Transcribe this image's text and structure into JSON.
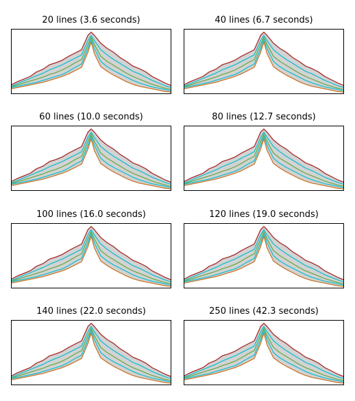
{
  "chart_data": {
    "type": "area",
    "layout": "4x2 grid of small panels",
    "xlim": [
      0,
      100
    ],
    "ylim": [
      0,
      100
    ],
    "grid": false,
    "axis_ticks": false,
    "colors": {
      "upper_boundary": "#a52a2a",
      "lower_boundary": "#c8752a",
      "band_fill": "#d3d3d3",
      "inner_lines": "#17becf",
      "median_line": "#6aaa4a"
    },
    "x": [
      0,
      4,
      8,
      12,
      16,
      20,
      24,
      28,
      32,
      36,
      40,
      44,
      48,
      50,
      52,
      56,
      60,
      64,
      68,
      72,
      76,
      80,
      84,
      88,
      92,
      96,
      100
    ],
    "series": [
      {
        "role": "upper",
        "values": [
          14,
          19,
          23,
          27,
          34,
          38,
          45,
          48,
          52,
          58,
          63,
          68,
          90,
          95,
          90,
          78,
          70,
          64,
          56,
          50,
          43,
          39,
          34,
          27,
          22,
          17,
          13
        ]
      },
      {
        "role": "inner-high",
        "values": [
          12,
          16,
          20,
          24,
          28,
          32,
          37,
          41,
          45,
          50,
          55,
          60,
          82,
          90,
          82,
          68,
          60,
          53,
          47,
          41,
          35,
          31,
          26,
          21,
          17,
          13,
          10
        ]
      },
      {
        "role": "median",
        "values": [
          11,
          14,
          17,
          20,
          23,
          26,
          30,
          33,
          37,
          42,
          48,
          53,
          76,
          87,
          76,
          58,
          50,
          44,
          38,
          32,
          27,
          23,
          19,
          15,
          12,
          9,
          7
        ]
      },
      {
        "role": "inner-low",
        "values": [
          10,
          12,
          14,
          16,
          18,
          21,
          24,
          27,
          30,
          35,
          41,
          46,
          70,
          84,
          70,
          50,
          42,
          36,
          31,
          26,
          21,
          17,
          14,
          11,
          9,
          7,
          5
        ]
      },
      {
        "role": "lower",
        "values": [
          8,
          10,
          12,
          14,
          16,
          18,
          21,
          24,
          27,
          31,
          36,
          41,
          64,
          80,
          62,
          42,
          35,
          29,
          24,
          19,
          15,
          12,
          10,
          8,
          6,
          4,
          3
        ]
      }
    ],
    "panels": [
      {
        "title": "20 lines (3.6 seconds)",
        "lines": 20,
        "seconds": 3.6
      },
      {
        "title": "40 lines (6.7 seconds)",
        "lines": 40,
        "seconds": 6.7
      },
      {
        "title": "60 lines (10.0 seconds)",
        "lines": 60,
        "seconds": 10.0
      },
      {
        "title": "80 lines (12.7 seconds)",
        "lines": 80,
        "seconds": 12.7
      },
      {
        "title": "100 lines (16.0 seconds)",
        "lines": 100,
        "seconds": 16.0
      },
      {
        "title": "120 lines (19.0 seconds)",
        "lines": 120,
        "seconds": 19.0
      },
      {
        "title": "140 lines (22.0 seconds)",
        "lines": 140,
        "seconds": 22.0
      },
      {
        "title": "250 lines (42.3 seconds)",
        "lines": 250,
        "seconds": 42.3
      }
    ]
  }
}
